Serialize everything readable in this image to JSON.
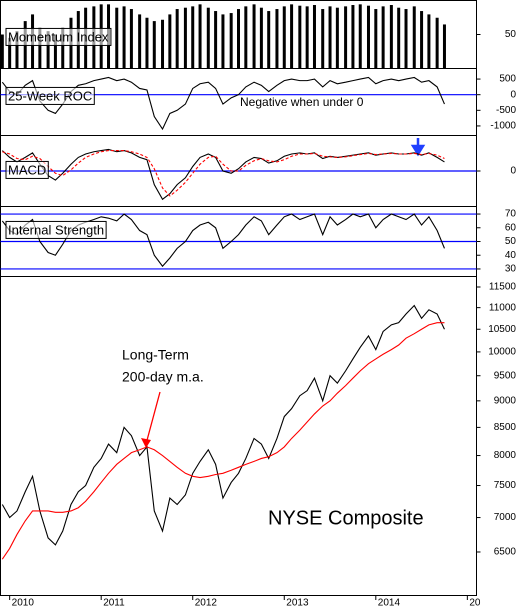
{
  "chart_data": [
    {
      "type": "bar",
      "title": "Momentum Index",
      "x": [
        2009.92,
        2010,
        2010.08,
        2010.17,
        2010.25,
        2010.33,
        2010.42,
        2010.5,
        2010.58,
        2010.67,
        2010.75,
        2010.83,
        2010.92,
        2011,
        2011.08,
        2011.17,
        2011.25,
        2011.33,
        2011.42,
        2011.5,
        2011.58,
        2011.67,
        2011.75,
        2011.83,
        2011.92,
        2012,
        2012.08,
        2012.17,
        2012.25,
        2012.33,
        2012.42,
        2012.5,
        2012.58,
        2012.67,
        2012.75,
        2012.83,
        2012.92,
        2013,
        2013.08,
        2013.17,
        2013.25,
        2013.33,
        2013.42,
        2013.5,
        2013.58,
        2013.67,
        2013.75,
        2013.83,
        2013.92,
        2014,
        2014.08,
        2014.17,
        2014.25,
        2014.33,
        2014.42,
        2014.5,
        2014.58,
        2014.67,
        2014.75
      ],
      "series": [
        {
          "color": "#000000",
          "values": [
            50,
            45,
            55,
            70,
            80,
            60,
            55,
            50,
            60,
            75,
            85,
            90,
            92,
            95,
            95,
            90,
            92,
            88,
            80,
            75,
            70,
            72,
            80,
            88,
            90,
            92,
            95,
            90,
            85,
            80,
            82,
            88,
            92,
            95,
            90,
            85,
            88,
            92,
            95,
            93,
            92,
            94,
            88,
            92,
            90,
            92,
            94,
            95,
            93,
            88,
            92,
            94,
            90,
            88,
            92,
            85,
            80,
            75,
            65
          ]
        }
      ],
      "ylim": [
        0,
        100
      ],
      "yticks": [
        50
      ]
    },
    {
      "type": "line",
      "title": "25-Week ROC",
      "x": [
        2009.92,
        2010,
        2010.08,
        2010.17,
        2010.25,
        2010.33,
        2010.42,
        2010.5,
        2010.58,
        2010.67,
        2010.75,
        2010.83,
        2010.92,
        2011,
        2011.08,
        2011.17,
        2011.25,
        2011.33,
        2011.42,
        2011.5,
        2011.58,
        2011.67,
        2011.75,
        2011.83,
        2011.92,
        2012,
        2012.08,
        2012.17,
        2012.25,
        2012.33,
        2012.42,
        2012.5,
        2012.58,
        2012.67,
        2012.75,
        2012.83,
        2012.92,
        2013,
        2013.08,
        2013.17,
        2013.25,
        2013.33,
        2013.42,
        2013.5,
        2013.58,
        2013.67,
        2013.75,
        2013.83,
        2013.92,
        2014,
        2014.08,
        2014.17,
        2014.25,
        2014.33,
        2014.42,
        2014.5,
        2014.58,
        2014.67,
        2014.75
      ],
      "series": [
        {
          "color": "#000000",
          "values": [
            400,
            100,
            0,
            300,
            450,
            -200,
            -500,
            -600,
            -300,
            100,
            300,
            350,
            450,
            500,
            550,
            450,
            500,
            400,
            200,
            150,
            -700,
            -1100,
            -600,
            -500,
            -300,
            200,
            350,
            400,
            200,
            -300,
            -100,
            0,
            250,
            400,
            300,
            100,
            300,
            450,
            500,
            450,
            450,
            500,
            250,
            450,
            350,
            400,
            450,
            500,
            550,
            350,
            450,
            500,
            450,
            500,
            550,
            400,
            450,
            250,
            -300
          ]
        }
      ],
      "ylim": [
        -1290,
        790
      ],
      "yticks": [
        500,
        0,
        -500,
        -1000
      ],
      "hlines": [
        0
      ],
      "hline_color": "#0000ff",
      "annotations": [
        {
          "text": "Negative when under 0",
          "color": "#0000ff"
        }
      ]
    },
    {
      "type": "line",
      "title": "MACD",
      "x": [
        2009.92,
        2010,
        2010.08,
        2010.17,
        2010.25,
        2010.33,
        2010.42,
        2010.5,
        2010.58,
        2010.67,
        2010.75,
        2010.83,
        2010.92,
        2011,
        2011.08,
        2011.17,
        2011.25,
        2011.33,
        2011.42,
        2011.5,
        2011.58,
        2011.67,
        2011.75,
        2011.83,
        2011.92,
        2012,
        2012.08,
        2012.17,
        2012.25,
        2012.33,
        2012.42,
        2012.5,
        2012.58,
        2012.67,
        2012.75,
        2012.83,
        2012.92,
        2013,
        2013.08,
        2013.17,
        2013.25,
        2013.33,
        2013.42,
        2013.5,
        2013.58,
        2013.67,
        2013.75,
        2013.83,
        2013.92,
        2014,
        2014.08,
        2014.17,
        2014.25,
        2014.33,
        2014.42,
        2014.5,
        2014.58,
        2014.67,
        2014.75
      ],
      "series": [
        {
          "color": "#000000",
          "values": [
            180,
            120,
            80,
            120,
            160,
            60,
            -40,
            -80,
            -20,
            60,
            120,
            150,
            170,
            180,
            190,
            170,
            180,
            160,
            120,
            100,
            -120,
            -250,
            -200,
            -120,
            -60,
            40,
            120,
            150,
            120,
            0,
            -20,
            20,
            80,
            120,
            110,
            70,
            90,
            130,
            150,
            160,
            150,
            160,
            110,
            130,
            120,
            130,
            140,
            150,
            160,
            140,
            150,
            160,
            150,
            150,
            160,
            140,
            160,
            120,
            80
          ]
        },
        {
          "color": "#ff0000",
          "dashed": true,
          "values": [
            170,
            150,
            110,
            100,
            130,
            110,
            40,
            -20,
            -40,
            10,
            70,
            120,
            150,
            170,
            180,
            180,
            180,
            170,
            150,
            120,
            20,
            -150,
            -220,
            -170,
            -100,
            -20,
            60,
            120,
            130,
            60,
            0,
            0,
            50,
            90,
            110,
            90,
            80,
            100,
            130,
            150,
            150,
            155,
            130,
            125,
            120,
            125,
            135,
            145,
            155,
            145,
            150,
            155,
            150,
            150,
            155,
            145,
            155,
            140,
            110
          ]
        }
      ],
      "ylim": [
        -300,
        300
      ],
      "yticks": [
        0
      ],
      "hlines": [
        0
      ],
      "hline_color": "#0000ff"
    },
    {
      "type": "line",
      "title": "Internal Strength",
      "x": [
        2009.92,
        2010,
        2010.08,
        2010.17,
        2010.25,
        2010.33,
        2010.42,
        2010.5,
        2010.58,
        2010.67,
        2010.75,
        2010.83,
        2010.92,
        2011,
        2011.08,
        2011.17,
        2011.25,
        2011.33,
        2011.42,
        2011.5,
        2011.58,
        2011.67,
        2011.75,
        2011.83,
        2011.92,
        2012,
        2012.08,
        2012.17,
        2012.25,
        2012.33,
        2012.42,
        2012.5,
        2012.58,
        2012.67,
        2012.75,
        2012.83,
        2012.92,
        2013,
        2013.08,
        2013.17,
        2013.25,
        2013.33,
        2013.42,
        2013.5,
        2013.58,
        2013.67,
        2013.75,
        2013.83,
        2013.92,
        2014,
        2014.08,
        2014.17,
        2014.25,
        2014.33,
        2014.42,
        2014.5,
        2014.58,
        2014.67,
        2014.75
      ],
      "series": [
        {
          "color": "#000000",
          "values": [
            65,
            58,
            55,
            62,
            66,
            50,
            42,
            40,
            48,
            58,
            62,
            64,
            66,
            68,
            67,
            65,
            70,
            66,
            58,
            55,
            40,
            32,
            38,
            45,
            50,
            58,
            62,
            64,
            60,
            45,
            50,
            55,
            62,
            68,
            65,
            55,
            62,
            68,
            70,
            66,
            68,
            70,
            55,
            68,
            62,
            66,
            70,
            68,
            70,
            60,
            66,
            70,
            68,
            66,
            70,
            62,
            68,
            58,
            45
          ]
        }
      ],
      "ylim": [
        25.6,
        74.4
      ],
      "yticks": [
        70,
        60,
        50,
        40,
        30
      ],
      "hlines": [
        70,
        50,
        30
      ],
      "hline_color": "#0000ff"
    },
    {
      "type": "line",
      "log": true,
      "x": [
        2009.92,
        2010,
        2010.08,
        2010.17,
        2010.25,
        2010.33,
        2010.42,
        2010.5,
        2010.58,
        2010.67,
        2010.75,
        2010.83,
        2010.92,
        2011,
        2011.08,
        2011.17,
        2011.25,
        2011.33,
        2011.42,
        2011.5,
        2011.58,
        2011.67,
        2011.75,
        2011.83,
        2011.92,
        2012,
        2012.08,
        2012.17,
        2012.25,
        2012.33,
        2012.42,
        2012.5,
        2012.58,
        2012.67,
        2012.75,
        2012.83,
        2012.92,
        2013,
        2013.08,
        2013.17,
        2013.25,
        2013.33,
        2013.42,
        2013.5,
        2013.58,
        2013.67,
        2013.75,
        2013.83,
        2013.92,
        2014,
        2014.08,
        2014.17,
        2014.25,
        2014.33,
        2014.42,
        2014.5,
        2014.58,
        2014.67,
        2014.75
      ],
      "series": [
        {
          "color": "#000000",
          "values": [
            7200,
            7000,
            7100,
            7400,
            7650,
            7100,
            6700,
            6600,
            6800,
            7200,
            7400,
            7500,
            7800,
            7950,
            8200,
            8050,
            8500,
            8350,
            8000,
            8150,
            7100,
            6800,
            7300,
            7200,
            7350,
            7700,
            7900,
            8100,
            7850,
            7300,
            7550,
            7700,
            7950,
            8300,
            8200,
            7950,
            8300,
            8700,
            8850,
            9100,
            9200,
            9450,
            9000,
            9500,
            9350,
            9600,
            9850,
            10100,
            10350,
            10050,
            10450,
            10600,
            10650,
            10850,
            11050,
            10750,
            10950,
            10850,
            10500
          ]
        },
        {
          "color": "#ff0000",
          "values": [
            6400,
            6550,
            6750,
            6950,
            7100,
            7100,
            7100,
            7080,
            7080,
            7100,
            7150,
            7250,
            7400,
            7550,
            7700,
            7850,
            7950,
            8050,
            8100,
            8150,
            8100,
            8000,
            7900,
            7800,
            7700,
            7650,
            7630,
            7650,
            7680,
            7700,
            7750,
            7800,
            7850,
            7900,
            7950,
            7980,
            8050,
            8150,
            8300,
            8450,
            8600,
            8750,
            8900,
            9000,
            9150,
            9300,
            9450,
            9600,
            9750,
            9850,
            9950,
            10050,
            10150,
            10300,
            10400,
            10500,
            10600,
            10650,
            10650
          ]
        }
      ],
      "ylim": [
        5925,
        11725
      ],
      "yticks": [
        11500,
        11000,
        10500,
        10000,
        9500,
        9000,
        8500,
        8000,
        7500,
        7000,
        6500
      ],
      "xlim": [
        2009.9,
        2015.1
      ],
      "xticks": [
        2010,
        2011,
        2012,
        2013,
        2014,
        {
          "value": 2015,
          "label": "20"
        }
      ],
      "annotations": [
        {
          "text": "Long-Term",
          "color": "#ff0000"
        },
        {
          "text": "200-day m.a.",
          "color": "#ff0000"
        },
        {
          "text": "NYSE Composite",
          "color": "#000000"
        }
      ]
    }
  ]
}
